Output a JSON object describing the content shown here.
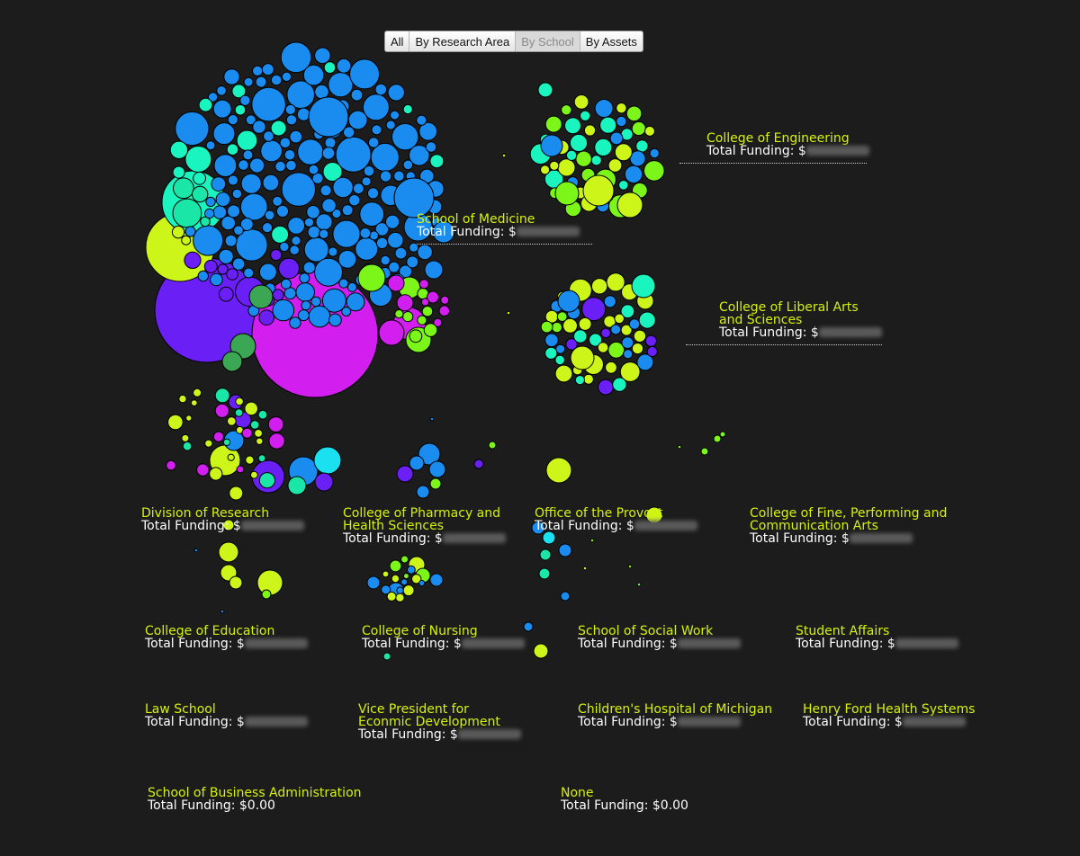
{
  "toolbar": {
    "buttons": [
      {
        "label": "All",
        "active": false
      },
      {
        "label": "By Research Area",
        "active": false
      },
      {
        "label": "By School",
        "active": true
      },
      {
        "label": "By Assets",
        "active": false
      }
    ]
  },
  "funding_prefix": "Total Funding: $",
  "colors": {
    "background": "#1c1c1c",
    "label": "#d6f20a",
    "text": "#ffffff",
    "palette": [
      "#1a8cf0",
      "#d21ff0",
      "#6a1ff5",
      "#cdf51a",
      "#7cf519",
      "#1af5c0",
      "#3ba653",
      "#1ae0f0",
      "#1ae6a8"
    ]
  },
  "groups": [
    {
      "id": "medicine",
      "name_lines": [
        "School of Medicine"
      ],
      "funding": null
    },
    {
      "id": "engineering",
      "name_lines": [
        "College of Engineering"
      ],
      "funding": null
    },
    {
      "id": "liberal-arts",
      "name_lines": [
        "College of Liberal Arts",
        "and Sciences"
      ],
      "funding": null
    },
    {
      "id": "research",
      "name_lines": [
        "Division of Research"
      ],
      "funding": null
    },
    {
      "id": "pharmacy",
      "name_lines": [
        "College of Pharmacy and",
        "Health Sciences"
      ],
      "funding": null
    },
    {
      "id": "provost",
      "name_lines": [
        "Office of the Provost"
      ],
      "funding": null
    },
    {
      "id": "fine-arts",
      "name_lines": [
        "College of Fine, Performing and",
        "Communication Arts"
      ],
      "funding": null
    },
    {
      "id": "education",
      "name_lines": [
        "College of Education"
      ],
      "funding": null
    },
    {
      "id": "nursing",
      "name_lines": [
        "College of Nursing"
      ],
      "funding": null
    },
    {
      "id": "social-work",
      "name_lines": [
        "School of Social Work"
      ],
      "funding": null
    },
    {
      "id": "student-affairs",
      "name_lines": [
        "Student Affairs"
      ],
      "funding": null
    },
    {
      "id": "law",
      "name_lines": [
        "Law School"
      ],
      "funding": null
    },
    {
      "id": "vp-econ",
      "name_lines": [
        "Vice President for",
        "Econmic Development"
      ],
      "funding": null
    },
    {
      "id": "childrens",
      "name_lines": [
        "Children's Hospital of Michigan"
      ],
      "funding": null
    },
    {
      "id": "henry-ford",
      "name_lines": [
        "Henry Ford Health Systems"
      ],
      "funding": null
    },
    {
      "id": "business",
      "name_lines": [
        "School of Business Administration"
      ],
      "funding": "0.00"
    },
    {
      "id": "none",
      "name_lines": [
        "None"
      ],
      "funding": "0.00"
    }
  ]
}
